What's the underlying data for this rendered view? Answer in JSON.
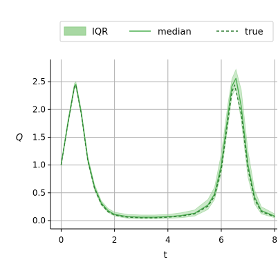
{
  "chart_data": {
    "type": "line",
    "title": "",
    "xlabel": "t",
    "ylabel": "Q",
    "xlim": [
      -0.4,
      8.1
    ],
    "ylim": [
      -0.15,
      2.9
    ],
    "xticks": [
      0,
      2,
      4,
      6,
      8
    ],
    "yticks": [
      0.0,
      0.5,
      1.0,
      1.5,
      2.0,
      2.5
    ],
    "xtick_labels": [
      "0",
      "2",
      "4",
      "6",
      "8"
    ],
    "ytick_labels": [
      "0.0",
      "0.5",
      "1.0",
      "1.5",
      "2.0",
      "2.5"
    ],
    "grid": true,
    "legend": {
      "placement": "top, outside, horizontal",
      "entries": [
        "IQR",
        "median",
        "true"
      ]
    },
    "series": [
      {
        "name": "IQR",
        "style": "band",
        "color": "#8fce8a",
        "x": [
          0,
          0.25,
          0.5,
          0.55,
          0.75,
          1.0,
          1.25,
          1.5,
          1.75,
          2.0,
          2.5,
          3.0,
          3.5,
          4.0,
          4.5,
          5.0,
          5.5,
          5.75,
          6.0,
          6.25,
          6.4,
          6.55,
          6.75,
          7.0,
          7.25,
          7.5,
          8.0
        ],
        "lower": [
          0.98,
          1.7,
          2.38,
          2.4,
          1.9,
          1.05,
          0.55,
          0.28,
          0.15,
          0.08,
          0.04,
          0.03,
          0.03,
          0.04,
          0.05,
          0.08,
          0.2,
          0.38,
          0.85,
          1.7,
          2.25,
          2.38,
          1.8,
          0.78,
          0.3,
          0.12,
          0.05
        ],
        "upper": [
          1.02,
          1.8,
          2.47,
          2.5,
          2.0,
          1.15,
          0.65,
          0.36,
          0.22,
          0.15,
          0.11,
          0.1,
          0.1,
          0.11,
          0.14,
          0.19,
          0.38,
          0.6,
          1.2,
          2.1,
          2.55,
          2.72,
          2.35,
          1.25,
          0.55,
          0.25,
          0.12
        ]
      },
      {
        "name": "median",
        "style": "solid",
        "color": "#4caf50",
        "x": [
          0,
          0.25,
          0.5,
          0.55,
          0.75,
          1.0,
          1.25,
          1.5,
          1.75,
          2.0,
          2.5,
          3.0,
          3.5,
          4.0,
          4.5,
          5.0,
          5.5,
          5.75,
          6.0,
          6.25,
          6.4,
          6.55,
          6.75,
          7.0,
          7.25,
          7.5,
          8.0
        ],
        "y": [
          1.0,
          1.75,
          2.42,
          2.45,
          1.95,
          1.1,
          0.6,
          0.32,
          0.18,
          0.11,
          0.07,
          0.06,
          0.06,
          0.07,
          0.09,
          0.13,
          0.28,
          0.48,
          1.0,
          1.9,
          2.42,
          2.56,
          2.05,
          1.0,
          0.42,
          0.18,
          0.08
        ]
      },
      {
        "name": "true",
        "style": "dashed",
        "color": "#2e7d32",
        "x": [
          0,
          0.25,
          0.5,
          0.55,
          0.75,
          1.0,
          1.25,
          1.5,
          1.75,
          2.0,
          2.5,
          3.0,
          3.5,
          4.0,
          4.5,
          5.0,
          5.5,
          5.75,
          6.0,
          6.25,
          6.4,
          6.5,
          6.75,
          7.0,
          7.25,
          7.5,
          8.0
        ],
        "y": [
          1.0,
          1.74,
          2.41,
          2.44,
          1.93,
          1.08,
          0.58,
          0.3,
          0.16,
          0.1,
          0.06,
          0.05,
          0.05,
          0.06,
          0.08,
          0.12,
          0.26,
          0.44,
          0.92,
          1.8,
          2.32,
          2.44,
          1.92,
          0.92,
          0.38,
          0.16,
          0.07
        ]
      }
    ]
  }
}
